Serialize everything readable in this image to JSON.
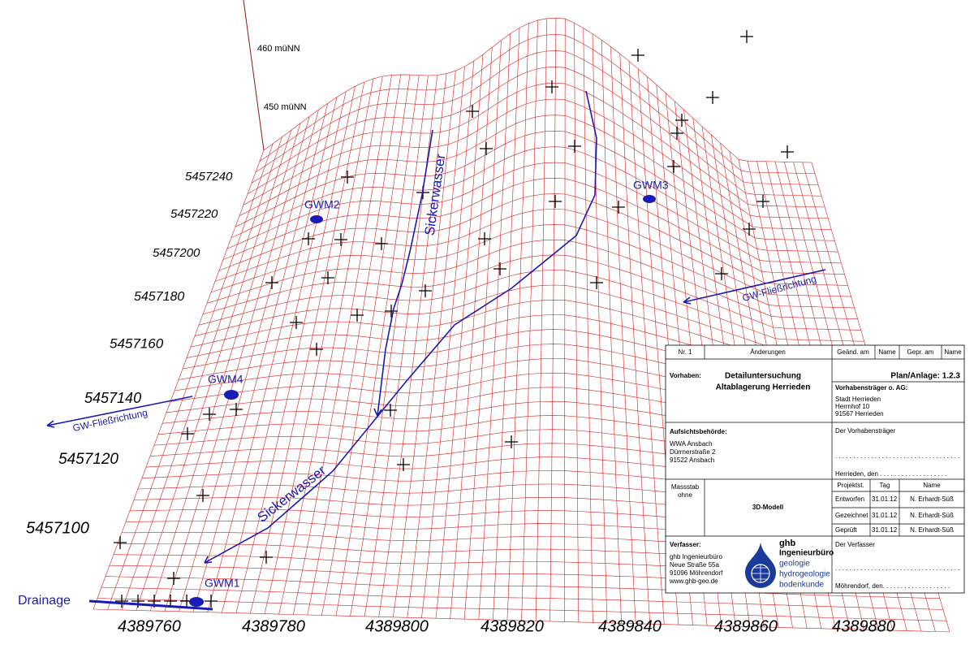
{
  "axes": {
    "z_labels": [
      "460 müNN",
      "450 müNN"
    ],
    "north_labels": [
      "5457240",
      "5457220",
      "5457200",
      "5457180",
      "5457160",
      "5457140",
      "5457120",
      "5457100"
    ],
    "east_labels": [
      "4389760",
      "4389780",
      "4389800",
      "4389820",
      "4389840",
      "4389860",
      "4389880"
    ]
  },
  "annotations": {
    "wells": [
      "GWM1",
      "GWM2",
      "GWM3",
      "GWM4"
    ],
    "drainage": "Drainage",
    "seepage": [
      "Sickerwasser",
      "Sickerwasser"
    ],
    "flow": [
      "GW-Fließrichtung",
      "GW-Fließrichtung"
    ]
  },
  "title_block": {
    "header": [
      "Nr. 1",
      "Änderungen",
      "Geänd. am",
      "Name",
      "Gepr. am",
      "Name"
    ],
    "project_label": "Vorhaben:",
    "project": [
      "Detailuntersuchung",
      "Altablagerung Herrieden"
    ],
    "plan": "Plan/Anlage: 1.2.3",
    "client_label": "Vorhabensträger o. AG:",
    "client": [
      "Stadt Herrieden",
      "Herrnhof 10",
      "91567 Herrieden"
    ],
    "authority_label": "Aufsichtsbehörde:",
    "authority": [
      "WWA Ansbach",
      "Dürrnerstraße 2",
      "91522 Ansbach"
    ],
    "client_sign": "Der Vorhabensträger",
    "client_dots": ". . . . . . . . . . . . . . . . . . . . . . . . . . . . . . . . . . .",
    "client_place": "Herrieden, den . . . . . . . . . . . . . . . . . . .",
    "scale": [
      "Massstab",
      "ohne"
    ],
    "model": "3D-Modell",
    "status_header": [
      "Projektst.",
      "Tag",
      "Name"
    ],
    "status_rows": [
      [
        "Entworfen",
        "31.01.12",
        "N. Erhardt-Süß"
      ],
      [
        "Gezeichnet",
        "31.01.12",
        "N. Erhardt-Süß"
      ],
      [
        "Geprüft",
        "31.01.12",
        "N. Erhardt-Süß"
      ]
    ],
    "author_label": "Verfasser:",
    "author": [
      "ghb Ingenieurbüro",
      "Neue Straße 55a",
      "91096 Möhrendorf",
      "www.ghb-geo.de"
    ],
    "logo": [
      "ghb",
      "Ingenieurbüro"
    ],
    "logo_fields": [
      "geologie",
      "hydrogeologie",
      "bodenkunde"
    ],
    "author_sign": "Der Verfasser",
    "author_dots": ". . . . . . . . . . . . . . . . . . . . . . . . . . . . . . . . . . .",
    "author_place": "Möhrendorf, den. . . . . . . . . . . . . . . . . . ."
  }
}
